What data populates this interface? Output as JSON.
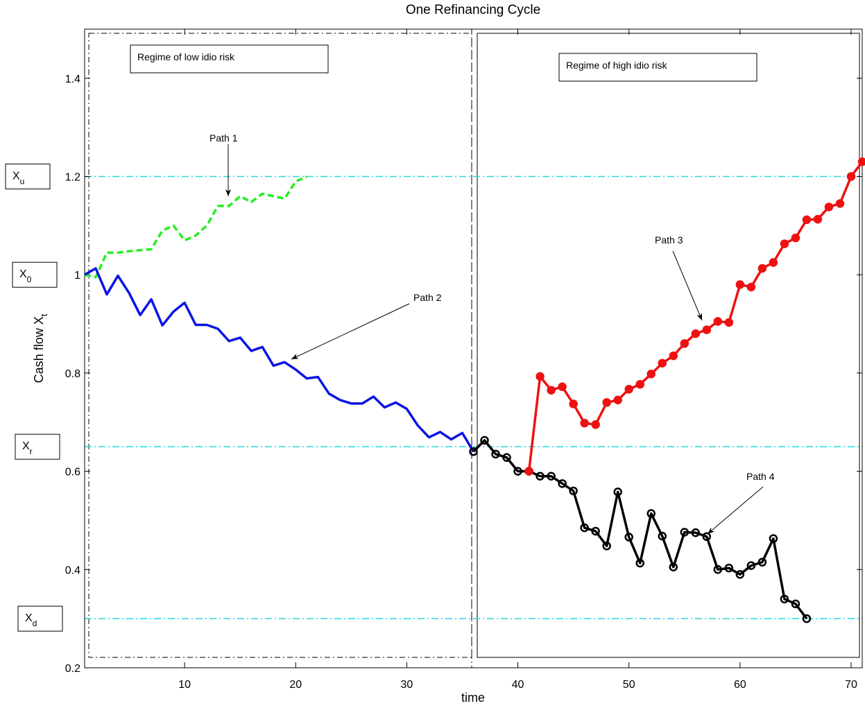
{
  "chart_data": {
    "type": "line",
    "title": "One Refinancing Cycle",
    "xlabel": "time",
    "ylabel": "Cash flow X",
    "ylabel_sub": "t",
    "xlim": [
      1,
      71
    ],
    "ylim": [
      0.2,
      1.5
    ],
    "xticks": [
      10,
      20,
      30,
      40,
      50,
      60,
      70
    ],
    "yticks": [
      0.2,
      0.4,
      0.6,
      0.8,
      1,
      1.2,
      1.4
    ],
    "hlines": [
      1.2,
      0.65,
      0.3
    ],
    "hline_color": "#22d8e0",
    "level_labels": [
      {
        "main": "X",
        "sub": "u",
        "value": 1.2
      },
      {
        "main": "X",
        "sub": "0",
        "value": 1
      },
      {
        "main": "X",
        "sub": "r",
        "value": 0.65
      },
      {
        "main": "X",
        "sub": "d",
        "value": 0.3
      }
    ],
    "regimes": [
      "Regime of low idio risk",
      "Regime of high idio risk"
    ],
    "annotations": [
      "Path 1",
      "Path 2",
      "Path 3",
      "Path 4"
    ],
    "series": [
      {
        "color": "#22ee22",
        "style": "dashed",
        "marker": "none",
        "x": [
          1,
          2,
          3,
          4,
          5,
          6,
          7,
          8,
          9,
          10,
          11,
          12,
          13,
          14,
          15,
          16,
          17,
          18,
          19,
          20,
          21
        ],
        "values": [
          1.0,
          0.995,
          1.045,
          1.045,
          1.048,
          1.05,
          1.052,
          1.09,
          1.1,
          1.07,
          1.08,
          1.1,
          1.14,
          1.14,
          1.16,
          1.148,
          1.165,
          1.16,
          1.155,
          1.19,
          1.2
        ]
      },
      {
        "color": "#0a14e6",
        "style": "solid",
        "marker": "none",
        "x": [
          1,
          2,
          3,
          4,
          5,
          6,
          7,
          8,
          9,
          10,
          11,
          12,
          13,
          14,
          15,
          16,
          17,
          18,
          19,
          20,
          21,
          22,
          23,
          24,
          25,
          26,
          27,
          28,
          29,
          30,
          31,
          32,
          33,
          34,
          35,
          36
        ],
        "values": [
          1.0,
          1.013,
          0.96,
          0.998,
          0.963,
          0.918,
          0.95,
          0.897,
          0.925,
          0.943,
          0.898,
          0.898,
          0.89,
          0.865,
          0.872,
          0.845,
          0.853,
          0.815,
          0.822,
          0.807,
          0.789,
          0.792,
          0.758,
          0.745,
          0.738,
          0.738,
          0.752,
          0.73,
          0.74,
          0.727,
          0.693,
          0.669,
          0.68,
          0.665,
          0.678,
          0.64
        ]
      },
      {
        "color": "#000000",
        "style": "solid",
        "marker": "open",
        "x": [
          36,
          37,
          38,
          39,
          40,
          41,
          42,
          43,
          44,
          45,
          46,
          47,
          48,
          49,
          50,
          51,
          52,
          53,
          54,
          55,
          56,
          57,
          58,
          59,
          60,
          61,
          62,
          63,
          64,
          65,
          66
        ],
        "values": [
          0.64,
          0.663,
          0.635,
          0.628,
          0.6,
          0.6,
          0.59,
          0.59,
          0.575,
          0.56,
          0.485,
          0.478,
          0.448,
          0.558,
          0.466,
          0.413,
          0.514,
          0.468,
          0.405,
          0.476,
          0.475,
          0.467,
          0.4,
          0.403,
          0.39,
          0.408,
          0.415,
          0.463,
          0.34,
          0.33,
          0.3
        ]
      },
      {
        "color": "#ee1111",
        "style": "solid",
        "marker": "filled",
        "x": [
          41,
          42,
          43,
          44,
          45,
          46,
          47,
          48,
          49,
          50,
          51,
          52,
          53,
          54,
          55,
          56,
          57,
          58,
          59,
          60,
          61,
          62,
          63,
          64,
          65,
          66,
          67,
          68,
          69,
          70,
          71
        ],
        "values": [
          0.6,
          0.793,
          0.765,
          0.772,
          0.737,
          0.698,
          0.695,
          0.74,
          0.745,
          0.767,
          0.777,
          0.798,
          0.82,
          0.835,
          0.86,
          0.88,
          0.888,
          0.905,
          0.903,
          0.98,
          0.975,
          1.013,
          1.025,
          1.063,
          1.075,
          1.112,
          1.113,
          1.138,
          1.145,
          1.2,
          1.23
        ]
      }
    ]
  }
}
